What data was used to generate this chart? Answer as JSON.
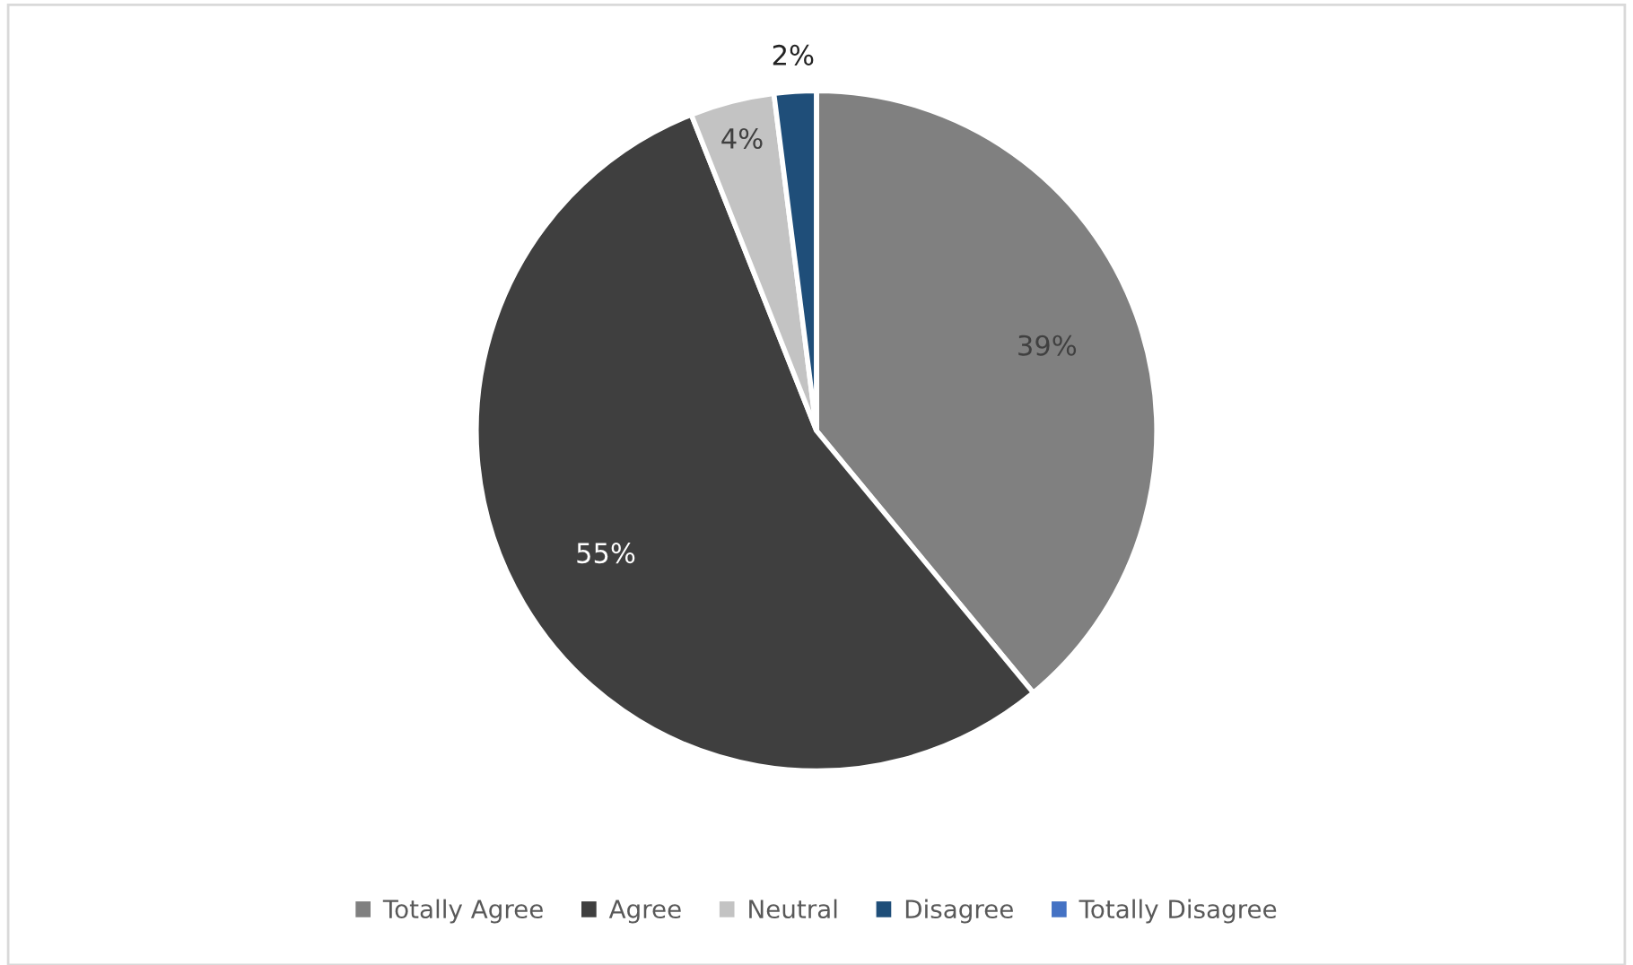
{
  "chart_data": {
    "type": "pie",
    "categories": [
      "Totally Agree",
      "Agree",
      "Neutral",
      "Disagree",
      "Totally Disagree"
    ],
    "values": [
      39,
      55,
      4,
      2,
      0
    ],
    "colors": [
      "#808080",
      "#3f3f3f",
      "#c3c3c3",
      "#1f4e79",
      "#4472c4"
    ],
    "value_labels": [
      "39%",
      "55%",
      "4%",
      "2%",
      null
    ],
    "legend": "bottom"
  }
}
